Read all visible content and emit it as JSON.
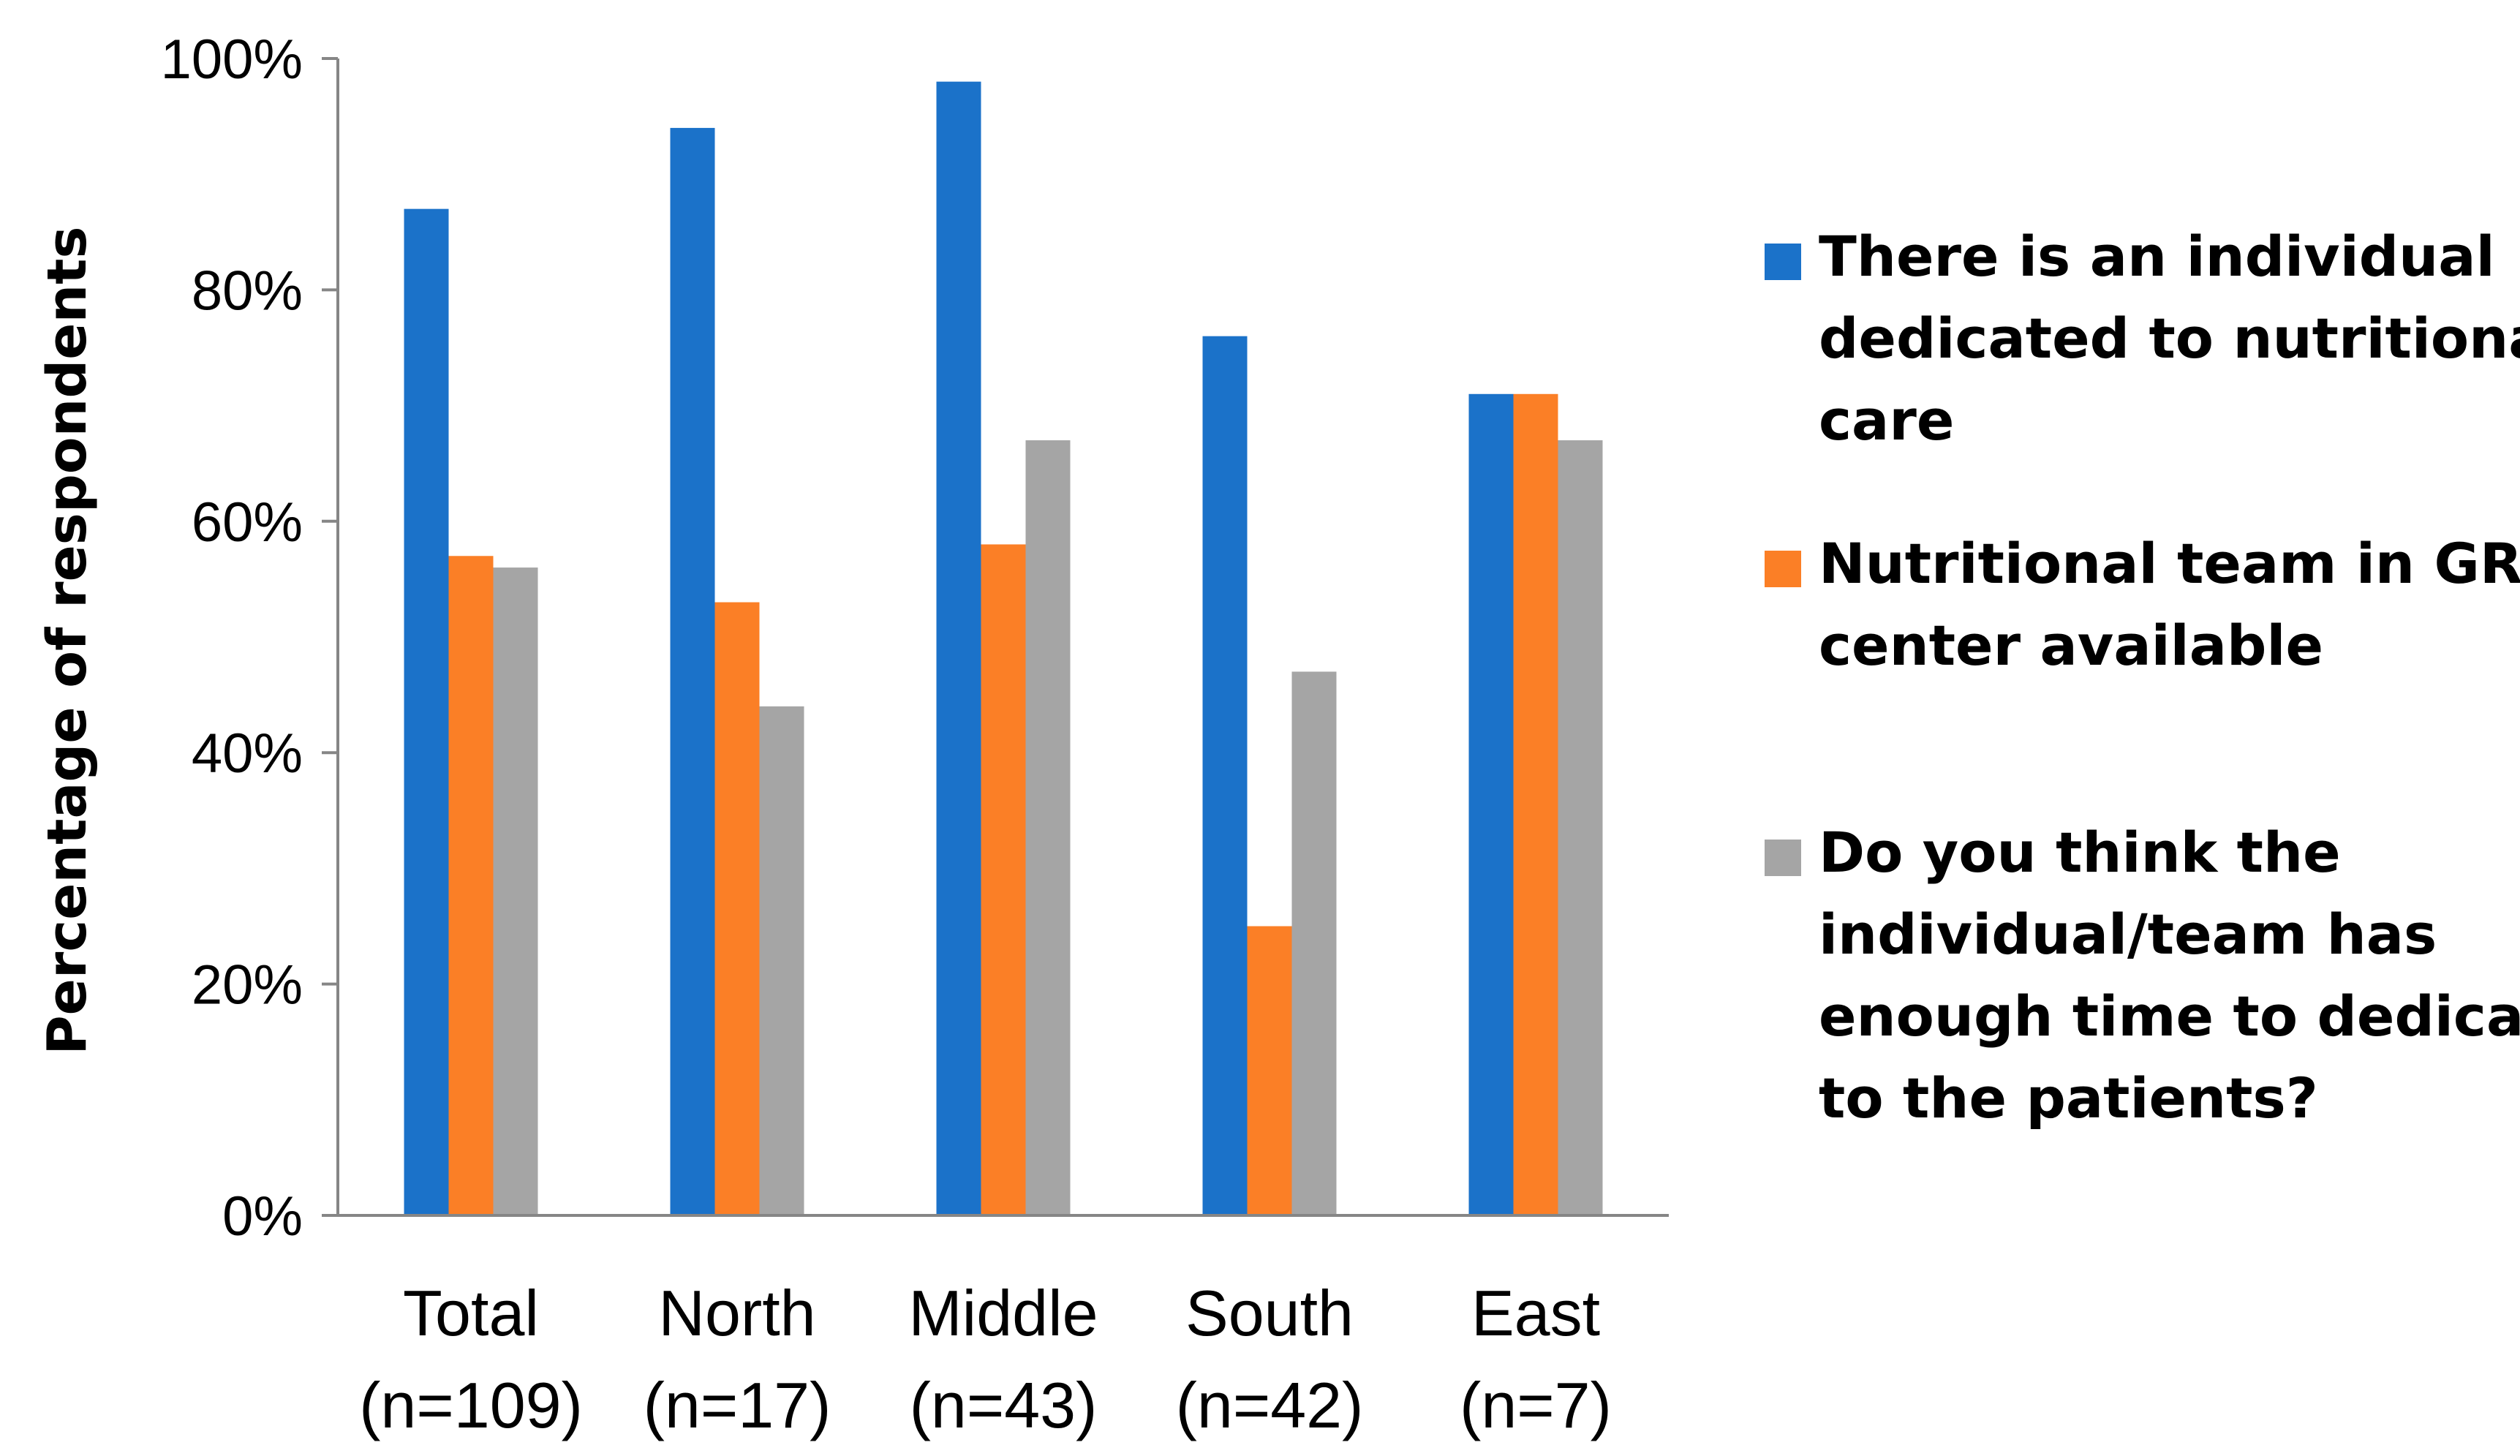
{
  "chart_data": {
    "type": "bar",
    "title": "",
    "xlabel": "",
    "ylabel": "Percentage of respondents",
    "ylim": [
      0,
      100
    ],
    "y_ticks": [
      "0%",
      "20%",
      "40%",
      "60%",
      "80%",
      "100%"
    ],
    "y_tick_values": [
      0,
      20,
      40,
      60,
      80,
      100
    ],
    "grid": false,
    "legend_position": "right",
    "categories": [
      [
        "Total",
        "(n=109)"
      ],
      [
        "North",
        "(n=17)"
      ],
      [
        "Middle",
        "(n=43)"
      ],
      [
        "South",
        "(n=42)"
      ],
      [
        "East",
        "(n=7)"
      ]
    ],
    "series": [
      {
        "name": "There is an individual dedicated to nutritional care",
        "legend_lines": [
          "There is an individual",
          "dedicated to nutritional",
          "care"
        ],
        "color": "#1B72C9",
        "values": [
          87,
          94,
          98,
          76,
          71
        ]
      },
      {
        "name": "Nutritional team in GR center available",
        "legend_lines": [
          "Nutritional team in GR",
          "center available"
        ],
        "color": "#FB7F26",
        "values": [
          57,
          53,
          58,
          25,
          71
        ]
      },
      {
        "name": "Do you think the individual/team has enough time to dedicate to the patients?",
        "legend_lines": [
          "Do you think the",
          "individual/team has",
          "enough time to dedicate",
          "to the patients?"
        ],
        "color": "#A5A5A5",
        "values": [
          56,
          44,
          67,
          47,
          67
        ]
      }
    ]
  }
}
